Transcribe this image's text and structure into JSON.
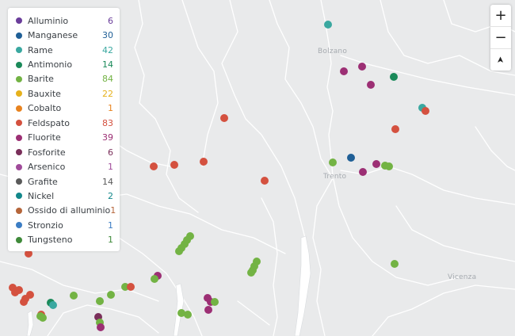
{
  "legend": {
    "items": [
      {
        "label": "Alluminio",
        "count": "6",
        "color": "#6a3d9a"
      },
      {
        "label": "Manganese",
        "count": "30",
        "color": "#1f5f96"
      },
      {
        "label": "Rame",
        "count": "42",
        "color": "#3aa8a0"
      },
      {
        "label": "Antimonio",
        "count": "14",
        "color": "#1b8a5a"
      },
      {
        "label": "Barite",
        "count": "84",
        "color": "#73b344"
      },
      {
        "label": "Bauxite",
        "count": "22",
        "color": "#e6b11c"
      },
      {
        "label": "Cobalto",
        "count": "1",
        "color": "#e8831f"
      },
      {
        "label": "Feldspato",
        "count": "83",
        "color": "#d4513f"
      },
      {
        "label": "Fluorite",
        "count": "39",
        "color": "#9c2f74"
      },
      {
        "label": "Fosforite",
        "count": "6",
        "color": "#7a2f5a"
      },
      {
        "label": "Arsenico",
        "count": "1",
        "color": "#a04b9a"
      },
      {
        "label": "Grafite",
        "count": "14",
        "color": "#5a5a5a"
      },
      {
        "label": "Nickel",
        "count": "2",
        "color": "#12878a"
      },
      {
        "label": "Ossido di alluminio",
        "count": "1",
        "color": "#b5653a"
      },
      {
        "label": "Stronzio",
        "count": "1",
        "color": "#3c7dc4"
      },
      {
        "label": "Tungsteno",
        "count": "1",
        "color": "#3f8a3a"
      }
    ]
  },
  "controls": {
    "zoom_in": "+",
    "zoom_out": "−",
    "locate": "➤"
  },
  "map": {
    "place_labels": [
      "Bolzano",
      "Trento",
      "Vicenza"
    ]
  }
}
